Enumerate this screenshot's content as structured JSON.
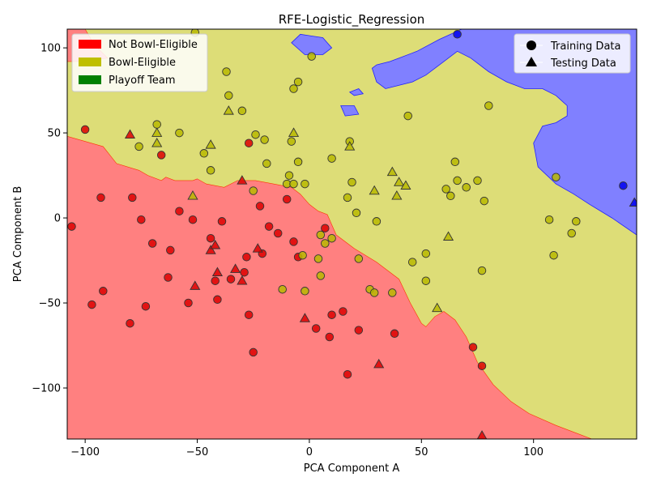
{
  "chart_data": {
    "type": "scatter",
    "title": "RFE-Logistic_Regression",
    "xlabel": "PCA Component A",
    "ylabel": "PCA Component B",
    "xlim": [
      -108,
      146
    ],
    "ylim": [
      -130,
      111
    ],
    "xticks": [
      -100,
      -50,
      0,
      50,
      100
    ],
    "yticks": [
      -100,
      -50,
      0,
      50,
      100
    ],
    "grid": false,
    "colors": {
      "region_not_bowl": "#ff8080",
      "region_bowl": "#dddd77",
      "region_playoff": "#8080ff",
      "point_not_bowl": "#dd0000",
      "point_bowl": "#b8b800",
      "point_playoff": "#0000ee"
    },
    "legend_classes": {
      "position": "top-left",
      "entries": [
        {
          "label": "Not Bowl-Eligible",
          "color": "#ff0000"
        },
        {
          "label": "Bowl-Eligible",
          "color": "#bfbf00"
        },
        {
          "label": "Playoff Team",
          "color": "#008000"
        }
      ]
    },
    "legend_markers": {
      "position": "top-right",
      "entries": [
        {
          "label": "Training Data",
          "marker": "circle"
        },
        {
          "label": "Testing Data",
          "marker": "triangle"
        }
      ]
    },
    "decision_regions": {
      "not_bowl_eligible": [
        [
          -108,
          48
        ],
        [
          -100,
          45
        ],
        [
          -92,
          42
        ],
        [
          -86,
          32
        ],
        [
          -76,
          28
        ],
        [
          -72,
          25
        ],
        [
          -66,
          22
        ],
        [
          -64,
          24
        ],
        [
          -60,
          22
        ],
        [
          -52,
          22
        ],
        [
          -50,
          23
        ],
        [
          -46,
          20
        ],
        [
          -38,
          18
        ],
        [
          -32,
          22
        ],
        [
          -24,
          22
        ],
        [
          -16,
          20
        ],
        [
          -8,
          18
        ],
        [
          -4,
          14
        ],
        [
          0,
          8
        ],
        [
          4,
          4
        ],
        [
          8,
          2
        ],
        [
          10,
          -4
        ],
        [
          12,
          -10
        ],
        [
          20,
          -18
        ],
        [
          30,
          -26
        ],
        [
          40,
          -36
        ],
        [
          45,
          -50
        ],
        [
          50,
          -62
        ],
        [
          52,
          -64
        ],
        [
          56,
          -58
        ],
        [
          60,
          -55
        ],
        [
          65,
          -60
        ],
        [
          70,
          -70
        ],
        [
          75,
          -85
        ],
        [
          82,
          -98
        ],
        [
          90,
          -108
        ],
        [
          98,
          -115
        ],
        [
          110,
          -122
        ],
        [
          120,
          -127
        ],
        [
          126,
          -130
        ],
        [
          -108,
          -130
        ]
      ],
      "playoff_team_right": [
        [
          146,
          111
        ],
        [
          68,
          111
        ],
        [
          58,
          105
        ],
        [
          48,
          98
        ],
        [
          40,
          94
        ],
        [
          36,
          92
        ],
        [
          30,
          90
        ],
        [
          28,
          88
        ],
        [
          30,
          80
        ],
        [
          34,
          76
        ],
        [
          46,
          80
        ],
        [
          52,
          84
        ],
        [
          60,
          92
        ],
        [
          66,
          98
        ],
        [
          72,
          94
        ],
        [
          80,
          86
        ],
        [
          88,
          80
        ],
        [
          96,
          76
        ],
        [
          104,
          76
        ],
        [
          110,
          72
        ],
        [
          115,
          66
        ],
        [
          115,
          60
        ],
        [
          110,
          56
        ],
        [
          104,
          54
        ],
        [
          100,
          44
        ],
        [
          102,
          30
        ],
        [
          110,
          20
        ],
        [
          118,
          14
        ],
        [
          125,
          8
        ],
        [
          135,
          0
        ],
        [
          146,
          -10
        ]
      ],
      "playoff_team_islands": [
        [
          [
            -8,
            103
          ],
          [
            -4,
            108
          ],
          [
            6,
            106
          ],
          [
            10,
            100
          ],
          [
            6,
            96
          ],
          [
            -2,
            96
          ]
        ],
        [
          [
            14,
            66
          ],
          [
            20,
            66
          ],
          [
            22,
            61
          ],
          [
            16,
            60
          ]
        ],
        [
          [
            18,
            74
          ],
          [
            22,
            76
          ],
          [
            24,
            73
          ],
          [
            20,
            72
          ]
        ]
      ],
      "not_bowl_top_left": [
        [
          -108,
          111
        ],
        [
          -100,
          111
        ],
        [
          -96,
          102
        ],
        [
          -90,
          94
        ],
        [
          -100,
          92
        ],
        [
          -108,
          92
        ]
      ]
    },
    "points": [
      {
        "x": -106,
        "y": -5,
        "class": "not_bowl",
        "set": "train"
      },
      {
        "x": -100,
        "y": 52,
        "class": "not_bowl",
        "set": "train"
      },
      {
        "x": -97,
        "y": -51,
        "class": "not_bowl",
        "set": "train"
      },
      {
        "x": -93,
        "y": 12,
        "class": "not_bowl",
        "set": "train"
      },
      {
        "x": -92,
        "y": -43,
        "class": "not_bowl",
        "set": "train"
      },
      {
        "x": -80,
        "y": -62,
        "class": "not_bowl",
        "set": "train"
      },
      {
        "x": -79,
        "y": 12,
        "class": "not_bowl",
        "set": "train"
      },
      {
        "x": -75,
        "y": -1,
        "class": "not_bowl",
        "set": "train"
      },
      {
        "x": -73,
        "y": -52,
        "class": "not_bowl",
        "set": "train"
      },
      {
        "x": -70,
        "y": -15,
        "class": "not_bowl",
        "set": "train"
      },
      {
        "x": -66,
        "y": 37,
        "class": "not_bowl",
        "set": "train"
      },
      {
        "x": -63,
        "y": -35,
        "class": "not_bowl",
        "set": "train"
      },
      {
        "x": -62,
        "y": -19,
        "class": "not_bowl",
        "set": "train"
      },
      {
        "x": -58,
        "y": 4,
        "class": "not_bowl",
        "set": "train"
      },
      {
        "x": -54,
        "y": -50,
        "class": "not_bowl",
        "set": "train"
      },
      {
        "x": -52,
        "y": -1,
        "class": "not_bowl",
        "set": "train"
      },
      {
        "x": -44,
        "y": -12,
        "class": "not_bowl",
        "set": "train"
      },
      {
        "x": -42,
        "y": -37,
        "class": "not_bowl",
        "set": "train"
      },
      {
        "x": -41,
        "y": -48,
        "class": "not_bowl",
        "set": "train"
      },
      {
        "x": -39,
        "y": -2,
        "class": "not_bowl",
        "set": "train"
      },
      {
        "x": -35,
        "y": -36,
        "class": "not_bowl",
        "set": "train"
      },
      {
        "x": -29,
        "y": -32,
        "class": "not_bowl",
        "set": "train"
      },
      {
        "x": -28,
        "y": -23,
        "class": "not_bowl",
        "set": "train"
      },
      {
        "x": -27,
        "y": -57,
        "class": "not_bowl",
        "set": "train"
      },
      {
        "x": -27,
        "y": 44,
        "class": "not_bowl",
        "set": "train"
      },
      {
        "x": -25,
        "y": -79,
        "class": "not_bowl",
        "set": "train"
      },
      {
        "x": -22,
        "y": 7,
        "class": "not_bowl",
        "set": "train"
      },
      {
        "x": -21,
        "y": -21,
        "class": "not_bowl",
        "set": "train"
      },
      {
        "x": -18,
        "y": -5,
        "class": "not_bowl",
        "set": "train"
      },
      {
        "x": -14,
        "y": -9,
        "class": "not_bowl",
        "set": "train"
      },
      {
        "x": -10,
        "y": 11,
        "class": "not_bowl",
        "set": "train"
      },
      {
        "x": -7,
        "y": -14,
        "class": "not_bowl",
        "set": "train"
      },
      {
        "x": -5,
        "y": -23,
        "class": "not_bowl",
        "set": "train"
      },
      {
        "x": 3,
        "y": -65,
        "class": "not_bowl",
        "set": "train"
      },
      {
        "x": 7,
        "y": -6,
        "class": "not_bowl",
        "set": "train"
      },
      {
        "x": 9,
        "y": -70,
        "class": "not_bowl",
        "set": "train"
      },
      {
        "x": 10,
        "y": -57,
        "class": "not_bowl",
        "set": "train"
      },
      {
        "x": 15,
        "y": -55,
        "class": "not_bowl",
        "set": "train"
      },
      {
        "x": 17,
        "y": -92,
        "class": "not_bowl",
        "set": "train"
      },
      {
        "x": 22,
        "y": -66,
        "class": "not_bowl",
        "set": "train"
      },
      {
        "x": 38,
        "y": -68,
        "class": "not_bowl",
        "set": "train"
      },
      {
        "x": 73,
        "y": -76,
        "class": "not_bowl",
        "set": "train"
      },
      {
        "x": 77,
        "y": -87,
        "class": "not_bowl",
        "set": "train"
      },
      {
        "x": -76,
        "y": 42,
        "class": "bowl",
        "set": "train"
      },
      {
        "x": -68,
        "y": 55,
        "class": "bowl",
        "set": "train"
      },
      {
        "x": -58,
        "y": 50,
        "class": "bowl",
        "set": "train"
      },
      {
        "x": -51,
        "y": 109,
        "class": "bowl",
        "set": "train"
      },
      {
        "x": -47,
        "y": 38,
        "class": "bowl",
        "set": "train"
      },
      {
        "x": -44,
        "y": 28,
        "class": "bowl",
        "set": "train"
      },
      {
        "x": -37,
        "y": 86,
        "class": "bowl",
        "set": "train"
      },
      {
        "x": -36,
        "y": 72,
        "class": "bowl",
        "set": "train"
      },
      {
        "x": -30,
        "y": 63,
        "class": "bowl",
        "set": "train"
      },
      {
        "x": -25,
        "y": 16,
        "class": "bowl",
        "set": "train"
      },
      {
        "x": -24,
        "y": 49,
        "class": "bowl",
        "set": "train"
      },
      {
        "x": -20,
        "y": 46,
        "class": "bowl",
        "set": "train"
      },
      {
        "x": -19,
        "y": 32,
        "class": "bowl",
        "set": "train"
      },
      {
        "x": -12,
        "y": -42,
        "class": "bowl",
        "set": "train"
      },
      {
        "x": -10,
        "y": 20,
        "class": "bowl",
        "set": "train"
      },
      {
        "x": -9,
        "y": 25,
        "class": "bowl",
        "set": "train"
      },
      {
        "x": -8,
        "y": 45,
        "class": "bowl",
        "set": "train"
      },
      {
        "x": -7,
        "y": 76,
        "class": "bowl",
        "set": "train"
      },
      {
        "x": -7,
        "y": 20,
        "class": "bowl",
        "set": "train"
      },
      {
        "x": -5,
        "y": 80,
        "class": "bowl",
        "set": "train"
      },
      {
        "x": -5,
        "y": 33,
        "class": "bowl",
        "set": "train"
      },
      {
        "x": -3,
        "y": -22,
        "class": "bowl",
        "set": "train"
      },
      {
        "x": -2,
        "y": 20,
        "class": "bowl",
        "set": "train"
      },
      {
        "x": -2,
        "y": -43,
        "class": "bowl",
        "set": "train"
      },
      {
        "x": 1,
        "y": 95,
        "class": "bowl",
        "set": "train"
      },
      {
        "x": 4,
        "y": -24,
        "class": "bowl",
        "set": "train"
      },
      {
        "x": 5,
        "y": -10,
        "class": "bowl",
        "set": "train"
      },
      {
        "x": 5,
        "y": -34,
        "class": "bowl",
        "set": "train"
      },
      {
        "x": 7,
        "y": -15,
        "class": "bowl",
        "set": "train"
      },
      {
        "x": 10,
        "y": -12,
        "class": "bowl",
        "set": "train"
      },
      {
        "x": 10,
        "y": 35,
        "class": "bowl",
        "set": "train"
      },
      {
        "x": 17,
        "y": 12,
        "class": "bowl",
        "set": "train"
      },
      {
        "x": 18,
        "y": 45,
        "class": "bowl",
        "set": "train"
      },
      {
        "x": 19,
        "y": 21,
        "class": "bowl",
        "set": "train"
      },
      {
        "x": 21,
        "y": 3,
        "class": "bowl",
        "set": "train"
      },
      {
        "x": 22,
        "y": -24,
        "class": "bowl",
        "set": "train"
      },
      {
        "x": 27,
        "y": -42,
        "class": "bowl",
        "set": "train"
      },
      {
        "x": 29,
        "y": -44,
        "class": "bowl",
        "set": "train"
      },
      {
        "x": 30,
        "y": -2,
        "class": "bowl",
        "set": "train"
      },
      {
        "x": 37,
        "y": -44,
        "class": "bowl",
        "set": "train"
      },
      {
        "x": 44,
        "y": 60,
        "class": "bowl",
        "set": "train"
      },
      {
        "x": 46,
        "y": -26,
        "class": "bowl",
        "set": "train"
      },
      {
        "x": 52,
        "y": -21,
        "class": "bowl",
        "set": "train"
      },
      {
        "x": 52,
        "y": -37,
        "class": "bowl",
        "set": "train"
      },
      {
        "x": 61,
        "y": 17,
        "class": "bowl",
        "set": "train"
      },
      {
        "x": 63,
        "y": 13,
        "class": "bowl",
        "set": "train"
      },
      {
        "x": 65,
        "y": 33,
        "class": "bowl",
        "set": "train"
      },
      {
        "x": 66,
        "y": 22,
        "class": "bowl",
        "set": "train"
      },
      {
        "x": 70,
        "y": 18,
        "class": "bowl",
        "set": "train"
      },
      {
        "x": 75,
        "y": 22,
        "class": "bowl",
        "set": "train"
      },
      {
        "x": 77,
        "y": -31,
        "class": "bowl",
        "set": "train"
      },
      {
        "x": 78,
        "y": 10,
        "class": "bowl",
        "set": "train"
      },
      {
        "x": 80,
        "y": 66,
        "class": "bowl",
        "set": "train"
      },
      {
        "x": 107,
        "y": -1,
        "class": "bowl",
        "set": "train"
      },
      {
        "x": 109,
        "y": -22,
        "class": "bowl",
        "set": "train"
      },
      {
        "x": 110,
        "y": 24,
        "class": "bowl",
        "set": "train"
      },
      {
        "x": 117,
        "y": -9,
        "class": "bowl",
        "set": "train"
      },
      {
        "x": 119,
        "y": -2,
        "class": "bowl",
        "set": "train"
      },
      {
        "x": 66,
        "y": 108,
        "class": "playoff",
        "set": "train"
      },
      {
        "x": 140,
        "y": 19,
        "class": "playoff",
        "set": "train"
      },
      {
        "x": -80,
        "y": 49,
        "class": "not_bowl",
        "set": "test"
      },
      {
        "x": -52,
        "y": 13,
        "class": "bowl",
        "set": "test"
      },
      {
        "x": -51,
        "y": -40,
        "class": "not_bowl",
        "set": "test"
      },
      {
        "x": -44,
        "y": 43,
        "class": "bowl",
        "set": "test"
      },
      {
        "x": -44,
        "y": -19,
        "class": "not_bowl",
        "set": "test"
      },
      {
        "x": -42,
        "y": -16,
        "class": "not_bowl",
        "set": "test"
      },
      {
        "x": -41,
        "y": -32,
        "class": "not_bowl",
        "set": "test"
      },
      {
        "x": -36,
        "y": 63,
        "class": "bowl",
        "set": "test"
      },
      {
        "x": -33,
        "y": -30,
        "class": "not_bowl",
        "set": "test"
      },
      {
        "x": -30,
        "y": -37,
        "class": "not_bowl",
        "set": "test"
      },
      {
        "x": -30,
        "y": 22,
        "class": "not_bowl",
        "set": "test"
      },
      {
        "x": -23,
        "y": -18,
        "class": "not_bowl",
        "set": "test"
      },
      {
        "x": -68,
        "y": 50,
        "class": "bowl",
        "set": "test"
      },
      {
        "x": -68,
        "y": 44,
        "class": "bowl",
        "set": "test"
      },
      {
        "x": -7,
        "y": 50,
        "class": "bowl",
        "set": "test"
      },
      {
        "x": -2,
        "y": -59,
        "class": "not_bowl",
        "set": "test"
      },
      {
        "x": 18,
        "y": 42,
        "class": "bowl",
        "set": "test"
      },
      {
        "x": 29,
        "y": 16,
        "class": "bowl",
        "set": "test"
      },
      {
        "x": 31,
        "y": -86,
        "class": "not_bowl",
        "set": "test"
      },
      {
        "x": 37,
        "y": 27,
        "class": "bowl",
        "set": "test"
      },
      {
        "x": 39,
        "y": 13,
        "class": "bowl",
        "set": "test"
      },
      {
        "x": 40,
        "y": 21,
        "class": "bowl",
        "set": "test"
      },
      {
        "x": 43,
        "y": 19,
        "class": "bowl",
        "set": "test"
      },
      {
        "x": 57,
        "y": -53,
        "class": "bowl",
        "set": "test"
      },
      {
        "x": 62,
        "y": -11,
        "class": "bowl",
        "set": "test"
      },
      {
        "x": 77,
        "y": -128,
        "class": "not_bowl",
        "set": "test"
      },
      {
        "x": 145,
        "y": 9,
        "class": "playoff",
        "set": "test"
      }
    ]
  }
}
